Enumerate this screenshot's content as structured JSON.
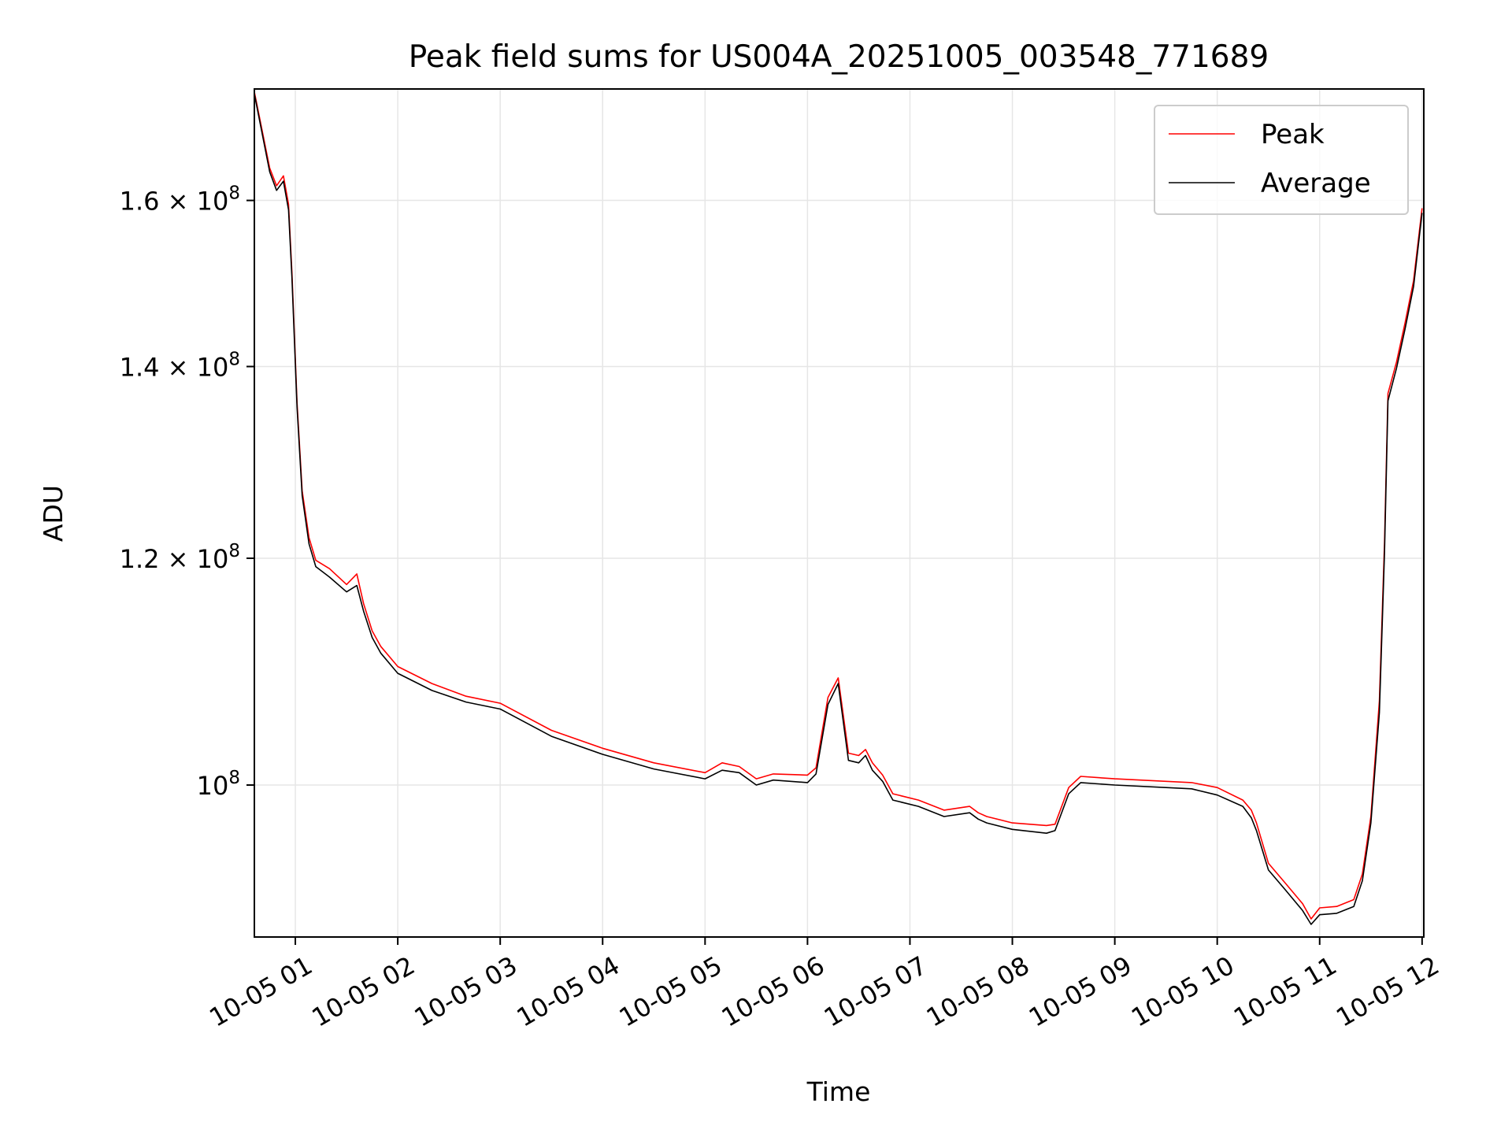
{
  "chart_data": {
    "type": "line",
    "title": "Peak field sums for US004A_20251005_003548_771689",
    "xlabel": "Time",
    "ylabel": "ADU",
    "yscale": "log",
    "grid": true,
    "legend_position": "top-right",
    "xlim": [
      "2025-10-05 00:36",
      "2025-10-05 12:01"
    ],
    "ylim": [
      88500000,
      175000000
    ],
    "x_ticks": [
      {
        "t": "2025-10-05 01:00",
        "label": "10-05 01"
      },
      {
        "t": "2025-10-05 02:00",
        "label": "10-05 02"
      },
      {
        "t": "2025-10-05 03:00",
        "label": "10-05 03"
      },
      {
        "t": "2025-10-05 04:00",
        "label": "10-05 04"
      },
      {
        "t": "2025-10-05 05:00",
        "label": "10-05 05"
      },
      {
        "t": "2025-10-05 06:00",
        "label": "10-05 06"
      },
      {
        "t": "2025-10-05 07:00",
        "label": "10-05 07"
      },
      {
        "t": "2025-10-05 08:00",
        "label": "10-05 08"
      },
      {
        "t": "2025-10-05 09:00",
        "label": "10-05 09"
      },
      {
        "t": "2025-10-05 10:00",
        "label": "10-05 10"
      },
      {
        "t": "2025-10-05 11:00",
        "label": "10-05 11"
      },
      {
        "t": "2025-10-05 12:00",
        "label": "10-05 12"
      }
    ],
    "y_ticks": [
      {
        "value": 100000000,
        "mantissa": "",
        "exponent": "8"
      },
      {
        "value": 120000000,
        "mantissa": "1.2",
        "exponent": "8"
      },
      {
        "value": 140000000,
        "mantissa": "1.4",
        "exponent": "8"
      },
      {
        "value": 160000000,
        "mantissa": "1.6",
        "exponent": "8"
      }
    ],
    "series": [
      {
        "name": "Peak",
        "color": "#ff0000",
        "x": [
          "2025-10-05 00:36",
          "2025-10-05 00:45",
          "2025-10-05 00:49",
          "2025-10-05 00:53",
          "2025-10-05 00:56",
          "2025-10-05 00:58",
          "2025-10-05 01:01",
          "2025-10-05 01:04",
          "2025-10-05 01:08",
          "2025-10-05 01:12",
          "2025-10-05 01:20",
          "2025-10-05 01:30",
          "2025-10-05 01:36",
          "2025-10-05 01:40",
          "2025-10-05 01:45",
          "2025-10-05 01:50",
          "2025-10-05 02:00",
          "2025-10-05 02:20",
          "2025-10-05 02:40",
          "2025-10-05 03:00",
          "2025-10-05 03:30",
          "2025-10-05 04:00",
          "2025-10-05 04:30",
          "2025-10-05 05:00",
          "2025-10-05 05:10",
          "2025-10-05 05:20",
          "2025-10-05 05:30",
          "2025-10-05 05:40",
          "2025-10-05 06:00",
          "2025-10-05 06:05",
          "2025-10-05 06:12",
          "2025-10-05 06:18",
          "2025-10-05 06:24",
          "2025-10-05 06:30",
          "2025-10-05 06:34",
          "2025-10-05 06:38",
          "2025-10-05 06:44",
          "2025-10-05 06:50",
          "2025-10-05 07:05",
          "2025-10-05 07:20",
          "2025-10-05 07:35",
          "2025-10-05 07:40",
          "2025-10-05 07:45",
          "2025-10-05 08:00",
          "2025-10-05 08:20",
          "2025-10-05 08:25",
          "2025-10-05 08:33",
          "2025-10-05 08:40",
          "2025-10-05 09:00",
          "2025-10-05 09:30",
          "2025-10-05 09:45",
          "2025-10-05 10:00",
          "2025-10-05 10:15",
          "2025-10-05 10:20",
          "2025-10-05 10:23",
          "2025-10-05 10:30",
          "2025-10-05 10:40",
          "2025-10-05 10:50",
          "2025-10-05 10:55",
          "2025-10-05 11:00",
          "2025-10-05 11:10",
          "2025-10-05 11:20",
          "2025-10-05 11:25",
          "2025-10-05 11:30",
          "2025-10-05 11:35",
          "2025-10-05 11:38",
          "2025-10-05 11:40",
          "2025-10-05 11:45",
          "2025-10-05 11:50",
          "2025-10-05 11:55",
          "2025-10-05 12:00"
        ],
        "y": [
          174600000,
          164200000,
          161900000,
          163200000,
          159500000,
          151000000,
          136000000,
          126700000,
          122000000,
          119800000,
          119000000,
          117500000,
          118500000,
          115700000,
          113200000,
          111800000,
          110000000,
          108500000,
          107400000,
          106800000,
          104500000,
          103000000,
          101800000,
          101000000,
          101800000,
          101500000,
          100500000,
          100900000,
          100800000,
          101400000,
          107300000,
          109000000,
          102600000,
          102400000,
          102900000,
          101800000,
          100800000,
          99300000,
          98800000,
          98000000,
          98300000,
          97800000,
          97500000,
          97000000,
          96800000,
          96900000,
          99800000,
          100700000,
          100500000,
          100300000,
          100200000,
          99800000,
          98800000,
          98000000,
          97000000,
          93900000,
          92400000,
          90900000,
          89800000,
          90600000,
          90700000,
          91200000,
          93100000,
          97500000,
          107000000,
          121500000,
          137000000,
          140500000,
          145000000,
          150000000,
          159000000
        ]
      },
      {
        "name": "Average",
        "color": "#000000",
        "x": [
          "2025-10-05 00:36",
          "2025-10-05 00:45",
          "2025-10-05 00:49",
          "2025-10-05 00:53",
          "2025-10-05 00:56",
          "2025-10-05 00:58",
          "2025-10-05 01:01",
          "2025-10-05 01:04",
          "2025-10-05 01:08",
          "2025-10-05 01:12",
          "2025-10-05 01:20",
          "2025-10-05 01:30",
          "2025-10-05 01:36",
          "2025-10-05 01:40",
          "2025-10-05 01:45",
          "2025-10-05 01:50",
          "2025-10-05 02:00",
          "2025-10-05 02:20",
          "2025-10-05 02:40",
          "2025-10-05 03:00",
          "2025-10-05 03:30",
          "2025-10-05 04:00",
          "2025-10-05 04:30",
          "2025-10-05 05:00",
          "2025-10-05 05:10",
          "2025-10-05 05:20",
          "2025-10-05 05:30",
          "2025-10-05 05:40",
          "2025-10-05 06:00",
          "2025-10-05 06:05",
          "2025-10-05 06:12",
          "2025-10-05 06:18",
          "2025-10-05 06:24",
          "2025-10-05 06:30",
          "2025-10-05 06:34",
          "2025-10-05 06:38",
          "2025-10-05 06:44",
          "2025-10-05 06:50",
          "2025-10-05 07:05",
          "2025-10-05 07:20",
          "2025-10-05 07:35",
          "2025-10-05 07:40",
          "2025-10-05 07:45",
          "2025-10-05 08:00",
          "2025-10-05 08:20",
          "2025-10-05 08:25",
          "2025-10-05 08:33",
          "2025-10-05 08:40",
          "2025-10-05 09:00",
          "2025-10-05 09:30",
          "2025-10-05 09:45",
          "2025-10-05 10:00",
          "2025-10-05 10:15",
          "2025-10-05 10:20",
          "2025-10-05 10:23",
          "2025-10-05 10:30",
          "2025-10-05 10:40",
          "2025-10-05 10:50",
          "2025-10-05 10:55",
          "2025-10-05 11:00",
          "2025-10-05 11:10",
          "2025-10-05 11:20",
          "2025-10-05 11:25",
          "2025-10-05 11:30",
          "2025-10-05 11:35",
          "2025-10-05 11:38",
          "2025-10-05 11:40",
          "2025-10-05 11:45",
          "2025-10-05 11:50",
          "2025-10-05 11:55",
          "2025-10-05 12:00"
        ],
        "y": [
          174300000,
          163700000,
          161300000,
          162500000,
          158800000,
          150400000,
          135500000,
          126200000,
          121400000,
          119200000,
          118200000,
          116800000,
          117400000,
          115000000,
          112600000,
          111200000,
          109400000,
          107900000,
          106900000,
          106300000,
          104000000,
          102500000,
          101300000,
          100500000,
          101200000,
          101000000,
          100000000,
          100400000,
          100200000,
          100900000,
          106700000,
          108500000,
          102000000,
          101800000,
          102400000,
          101200000,
          100300000,
          98800000,
          98300000,
          97500000,
          97800000,
          97300000,
          97000000,
          96500000,
          96200000,
          96400000,
          99300000,
          100200000,
          100000000,
          99800000,
          99700000,
          99200000,
          98300000,
          97400000,
          96400000,
          93400000,
          91900000,
          90400000,
          89400000,
          90100000,
          90200000,
          90700000,
          92600000,
          97000000,
          106000000,
          120500000,
          136200000,
          139800000,
          144300000,
          149300000,
          158400000
        ]
      }
    ]
  }
}
